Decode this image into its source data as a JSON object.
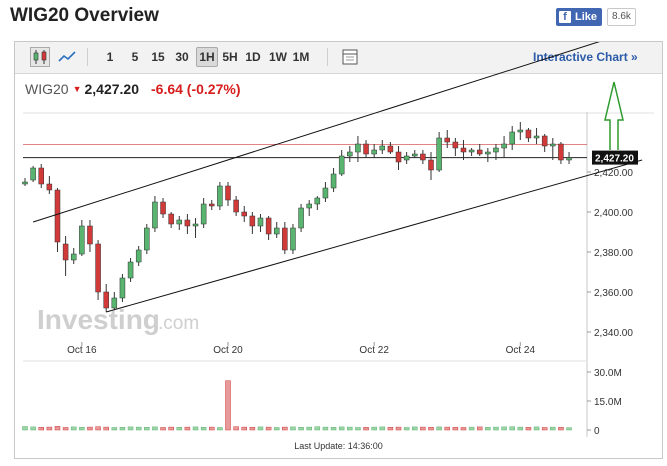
{
  "page": {
    "title": "WIG20 Overview"
  },
  "facebook": {
    "like_label": "Like",
    "count": "8.6k"
  },
  "toolbar": {
    "timeframes": [
      "1",
      "5",
      "15",
      "30",
      "1H",
      "5H",
      "1D",
      "1W",
      "1M"
    ],
    "active_timeframe": "1H",
    "icons": [
      "candlestick-icon",
      "line-chart-icon",
      "screenshot-icon"
    ],
    "interactive_chart_label": "Interactive Chart »"
  },
  "quote": {
    "symbol": "WIG20",
    "price": "2,427.20",
    "change": "-6.64 (-0.27%)",
    "direction": "down"
  },
  "watermark": {
    "brand": "Investing",
    "suffix": ".com"
  },
  "chart_data": {
    "type": "candlestick",
    "x_labels": [
      "Oct 16",
      "Oct 20",
      "Oct 22",
      "Oct 24"
    ],
    "y_ticks": [
      "2,420.00",
      "2,400.00",
      "2,380.00",
      "2,360.00",
      "2,340.00"
    ],
    "y_range": [
      2335,
      2450
    ],
    "current_price_label": "2,427.20",
    "current_price": 2427.2,
    "reference_price": 2433.84,
    "candles": [
      [
        2414,
        2417,
        2413,
        2415
      ],
      [
        2416,
        2423,
        2415,
        2422
      ],
      [
        2422,
        2424,
        2412,
        2414
      ],
      [
        2414,
        2418,
        2409,
        2411
      ],
      [
        2411,
        2412,
        2380,
        2385
      ],
      [
        2384,
        2388,
        2368,
        2376
      ],
      [
        2376,
        2382,
        2374,
        2379
      ],
      [
        2379,
        2396,
        2378,
        2393
      ],
      [
        2393,
        2396,
        2380,
        2384
      ],
      [
        2384,
        2386,
        2356,
        2360
      ],
      [
        2360,
        2364,
        2350,
        2352
      ],
      [
        2352,
        2360,
        2351,
        2357
      ],
      [
        2357,
        2369,
        2355,
        2367
      ],
      [
        2367,
        2377,
        2365,
        2375
      ],
      [
        2375,
        2383,
        2373,
        2381
      ],
      [
        2381,
        2394,
        2379,
        2392
      ],
      [
        2392,
        2408,
        2390,
        2405
      ],
      [
        2405,
        2407,
        2397,
        2399
      ],
      [
        2399,
        2400,
        2392,
        2394
      ],
      [
        2394,
        2398,
        2391,
        2396
      ],
      [
        2396,
        2399,
        2389,
        2393
      ],
      [
        2393,
        2397,
        2387,
        2394
      ],
      [
        2394,
        2407,
        2392,
        2404
      ],
      [
        2404,
        2406,
        2401,
        2403
      ],
      [
        2403,
        2415,
        2401,
        2413
      ],
      [
        2413,
        2415,
        2403,
        2406
      ],
      [
        2406,
        2408,
        2398,
        2400
      ],
      [
        2400,
        2403,
        2395,
        2398
      ],
      [
        2398,
        2400,
        2389,
        2393
      ],
      [
        2393,
        2399,
        2390,
        2397
      ],
      [
        2397,
        2398,
        2386,
        2389
      ],
      [
        2389,
        2395,
        2387,
        2392
      ],
      [
        2392,
        2395,
        2379,
        2381
      ],
      [
        2381,
        2394,
        2379,
        2392
      ],
      [
        2392,
        2404,
        2390,
        2402
      ],
      [
        2402,
        2406,
        2398,
        2404
      ],
      [
        2404,
        2408,
        2401,
        2407
      ],
      [
        2407,
        2415,
        2405,
        2412
      ],
      [
        2412,
        2422,
        2410,
        2419
      ],
      [
        2419,
        2431,
        2418,
        2428
      ],
      [
        2428,
        2433,
        2425,
        2430
      ],
      [
        2430,
        2438,
        2425,
        2434
      ],
      [
        2434,
        2436,
        2427,
        2429
      ],
      [
        2429,
        2434,
        2427,
        2431
      ],
      [
        2431,
        2436,
        2429,
        2433
      ],
      [
        2433,
        2435,
        2429,
        2430
      ],
      [
        2430,
        2433,
        2421,
        2425
      ],
      [
        2426,
        2430,
        2424,
        2428
      ],
      [
        2428,
        2431,
        2427,
        2429
      ],
      [
        2429,
        2431,
        2424,
        2426
      ],
      [
        2426,
        2430,
        2416,
        2421
      ],
      [
        2421,
        2440,
        2420,
        2437
      ],
      [
        2437,
        2441,
        2432,
        2435
      ],
      [
        2435,
        2437,
        2428,
        2432
      ],
      [
        2432,
        2436,
        2426,
        2430
      ],
      [
        2430,
        2432,
        2428,
        2431
      ],
      [
        2431,
        2434,
        2428,
        2429
      ],
      [
        2429,
        2432,
        2425,
        2430
      ],
      [
        2430,
        2434,
        2426,
        2432
      ],
      [
        2432,
        2438,
        2427,
        2434
      ],
      [
        2434,
        2443,
        2431,
        2440
      ],
      [
        2440,
        2445,
        2436,
        2441
      ],
      [
        2441,
        2442,
        2435,
        2437
      ],
      [
        2437,
        2442,
        2434,
        2438
      ],
      [
        2438,
        2439,
        2430,
        2433
      ],
      [
        2433,
        2437,
        2426,
        2434
      ],
      [
        2434,
        2435,
        2424,
        2426
      ],
      [
        2426,
        2430,
        2424,
        2427.2
      ]
    ],
    "volume_ticks": [
      "30.0M",
      "15.0M",
      "0"
    ],
    "volume_range": [
      0,
      30
    ],
    "volumes": [
      1.8,
      1.6,
      1.4,
      1.5,
      1.9,
      1.3,
      1.6,
      1.4,
      1.5,
      1.7,
      1.5,
      1.3,
      1.4,
      1.6,
      1.5,
      1.4,
      1.6,
      1.3,
      1.5,
      1.4,
      1.5,
      1.6,
      1.4,
      1.5,
      1.3,
      25.5,
      1.7,
      1.5,
      1.4,
      1.6,
      1.5,
      1.3,
      1.5,
      1.6,
      1.4,
      1.5,
      1.7,
      1.5,
      1.4,
      1.6,
      1.5,
      1.3,
      1.4,
      1.5,
      1.6,
      1.4,
      1.5,
      1.3,
      1.6,
      1.5,
      1.4,
      1.6,
      1.5,
      1.4,
      1.3,
      1.5,
      1.6,
      1.4,
      1.5,
      1.6,
      1.7,
      1.5,
      1.4,
      1.6,
      1.3,
      1.5,
      1.4,
      1.2
    ],
    "trend_channel": {
      "upper": [
        [
          1,
          2395
        ],
        [
          76,
          2492
        ]
      ],
      "lower": [
        [
          10,
          2350
        ],
        [
          76,
          2426
        ]
      ]
    },
    "colors": {
      "up": "#58b46e",
      "down": "#d23a3a",
      "wick": "#333333",
      "annotation_arrow": "#2e9b2e"
    }
  },
  "footer": {
    "last_update": "Last Update: 14:36:00"
  }
}
